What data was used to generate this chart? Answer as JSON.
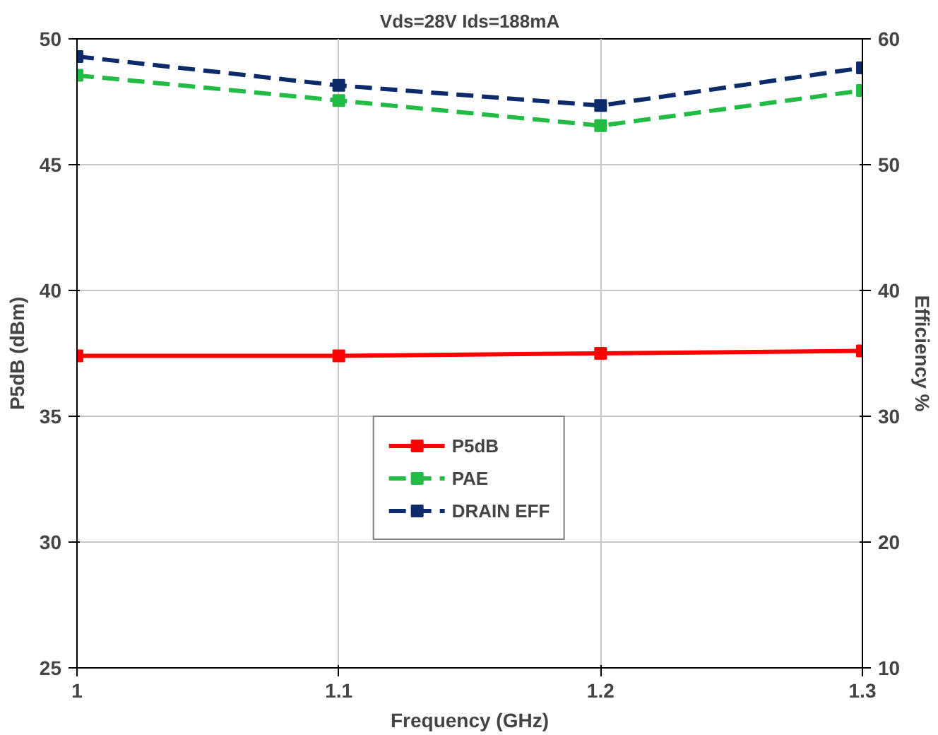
{
  "chart_data": {
    "type": "line",
    "title": "Vds=28V Ids=188mA",
    "xlabel": "Frequency (GHz)",
    "ylabel": "P5dB (dBm)",
    "y2label": "Efficiency %",
    "x": [
      1.0,
      1.1,
      1.2,
      1.3
    ],
    "xlim": [
      1.0,
      1.3
    ],
    "xticks": [
      {
        "value": 1.0,
        "label": "1"
      },
      1.1,
      1.2,
      1.3
    ],
    "ylim": [
      25,
      50
    ],
    "yticks": [
      25,
      30,
      35,
      40,
      45,
      50
    ],
    "y2lim": [
      10,
      60
    ],
    "y2ticks": [
      10,
      20,
      30,
      40,
      50,
      60
    ],
    "grid": true,
    "legend": "bottom",
    "marker": "square",
    "series": [
      {
        "name": "P5dB",
        "color": "#ff0000",
        "values": [
          37.4,
          37.4,
          37.5,
          37.6
        ],
        "line_style": "solid"
      },
      {
        "name": "PAE",
        "color": "#22bb44",
        "values": [
          57.1,
          55.1,
          53.1,
          55.9
        ],
        "axis": "y2",
        "line_style": "dashed"
      },
      {
        "name": "DRAIN EFF",
        "color": "#0d2a6b",
        "values": [
          58.6,
          56.3,
          54.7,
          57.7
        ],
        "axis": "y2",
        "line_style": "dashed"
      }
    ]
  }
}
